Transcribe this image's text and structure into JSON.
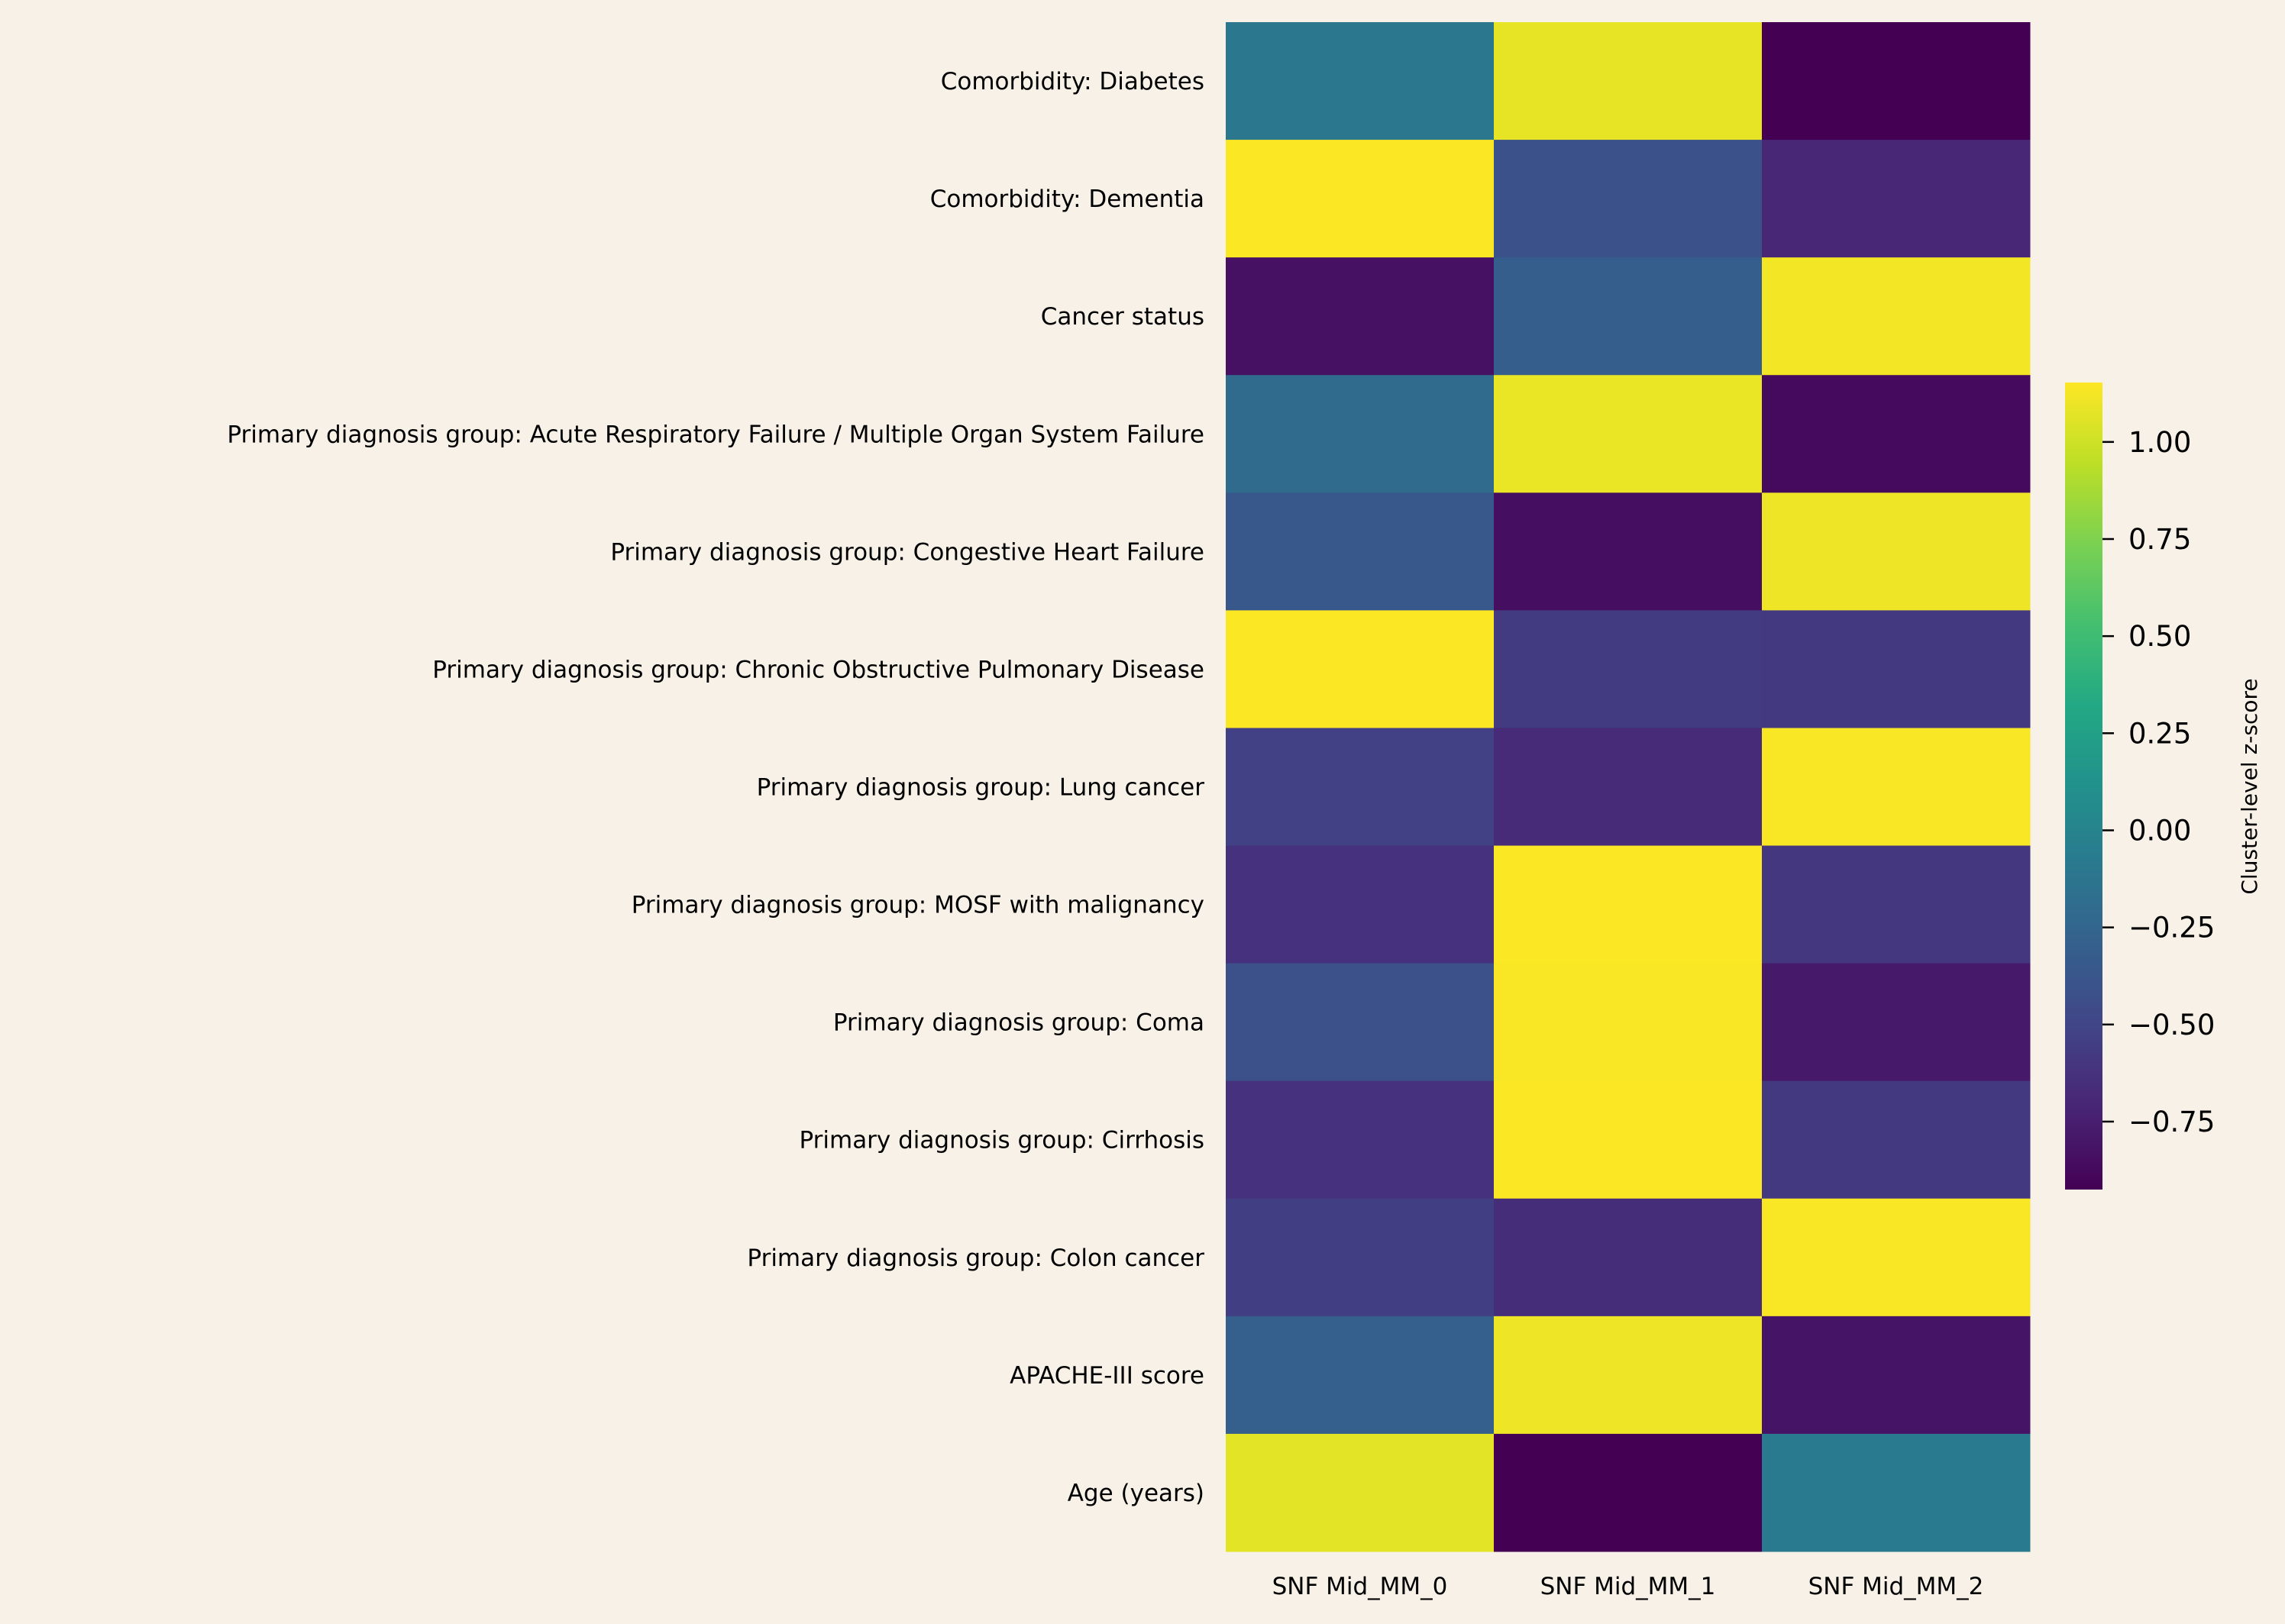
{
  "chart_data": {
    "type": "heatmap",
    "title": "",
    "xlabel": "",
    "ylabel": "",
    "colormap": "viridis",
    "vmin": -0.925,
    "vmax": 1.153,
    "colorbar_label": "Cluster-level z-score",
    "colorbar_ticks": [
      1.0,
      0.75,
      0.5,
      0.25,
      0.0,
      -0.25,
      -0.5,
      -0.75
    ],
    "colorbar_tick_labels": [
      "1.00",
      "0.75",
      "0.50",
      "0.25",
      "0.00",
      "−0.25",
      "−0.50",
      "−0.75"
    ],
    "columns": [
      "SNF Mid_MM_0",
      "SNF Mid_MM_1",
      "SNF Mid_MM_2"
    ],
    "rows": [
      "Comorbidity: Diabetes",
      "Comorbidity: Dementia",
      "Cancer status",
      "Primary diagnosis group: Acute Respiratory Failure / Multiple Organ System Failure",
      "Primary diagnosis group: Congestive Heart Failure",
      "Primary diagnosis group: Chronic Obstructive Pulmonary Disease",
      "Primary diagnosis group: Lung cancer",
      "Primary diagnosis group: MOSF with malignancy",
      "Primary diagnosis group: Coma",
      "Primary diagnosis group: Cirrhosis",
      "Primary diagnosis group: Colon cancer",
      "APACHE-III score",
      "Age (years)"
    ],
    "values": [
      [
        -0.1,
        1.08,
        -0.925
      ],
      [
        1.15,
        -0.41,
        -0.7
      ],
      [
        -0.83,
        -0.31,
        1.12
      ],
      [
        -0.2,
        1.09,
        -0.87
      ],
      [
        -0.36,
        -0.85,
        1.1
      ],
      [
        1.15,
        -0.57,
        -0.58
      ],
      [
        -0.53,
        -0.68,
        1.14
      ],
      [
        -0.63,
        1.15,
        -0.6
      ],
      [
        -0.42,
        1.14,
        -0.78
      ],
      [
        -0.63,
        1.15,
        -0.58
      ],
      [
        -0.55,
        -0.66,
        1.14
      ],
      [
        -0.3,
        1.1,
        -0.81
      ],
      [
        1.07,
        -0.925,
        -0.08
      ]
    ]
  }
}
